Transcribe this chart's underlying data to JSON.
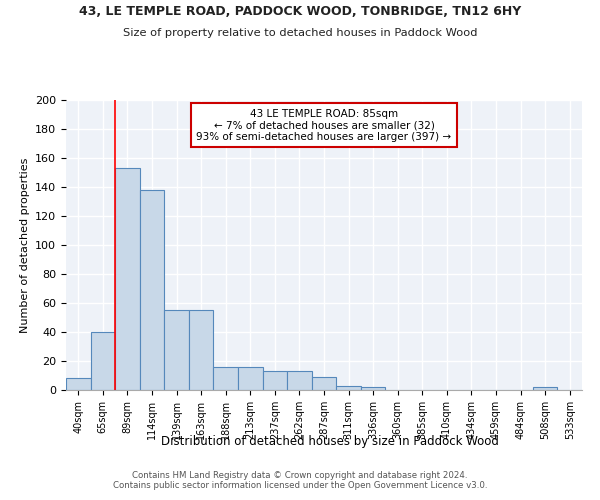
{
  "title": "43, LE TEMPLE ROAD, PADDOCK WOOD, TONBRIDGE, TN12 6HY",
  "subtitle": "Size of property relative to detached houses in Paddock Wood",
  "xlabel": "Distribution of detached houses by size in Paddock Wood",
  "ylabel": "Number of detached properties",
  "bin_labels": [
    "40sqm",
    "65sqm",
    "89sqm",
    "114sqm",
    "139sqm",
    "163sqm",
    "188sqm",
    "213sqm",
    "237sqm",
    "262sqm",
    "287sqm",
    "311sqm",
    "336sqm",
    "360sqm",
    "385sqm",
    "410sqm",
    "434sqm",
    "459sqm",
    "484sqm",
    "508sqm",
    "533sqm"
  ],
  "bar_values": [
    8,
    40,
    153,
    138,
    55,
    55,
    16,
    16,
    13,
    13,
    9,
    3,
    2,
    0,
    0,
    0,
    0,
    0,
    0,
    2,
    0
  ],
  "bar_color": "#c8d8e8",
  "bar_edge_color": "#5588bb",
  "red_line_bin": 2,
  "annotation_text": "43 LE TEMPLE ROAD: 85sqm\n← 7% of detached houses are smaller (32)\n93% of semi-detached houses are larger (397) →",
  "annotation_box_color": "#ffffff",
  "annotation_box_edge_color": "#cc0000",
  "ylim": [
    0,
    200
  ],
  "yticks": [
    0,
    20,
    40,
    60,
    80,
    100,
    120,
    140,
    160,
    180,
    200
  ],
  "bg_color": "#eef2f8",
  "grid_color": "#ffffff",
  "fig_bg_color": "#ffffff",
  "footer_line1": "Contains HM Land Registry data © Crown copyright and database right 2024.",
  "footer_line2": "Contains public sector information licensed under the Open Government Licence v3.0."
}
